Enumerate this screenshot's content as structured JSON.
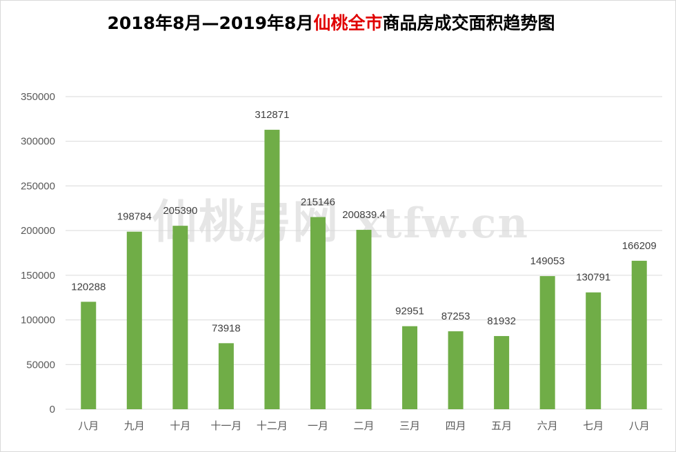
{
  "title": {
    "prefix": "2018年8月—2019年8月",
    "highlight": "仙桃全市",
    "suffix": "商品房成交面积趋势图"
  },
  "watermark": {
    "cn": "仙桃房网",
    "latin": "xtfw.cn"
  },
  "colors": {
    "bar": "#70ad47",
    "grid": "#d9d9d9",
    "title_highlight": "#e00000"
  },
  "chart_data": {
    "type": "bar",
    "categories": [
      "八月",
      "九月",
      "十月",
      "十一月",
      "十二月",
      "一月",
      "二月",
      "三月",
      "四月",
      "五月",
      "六月",
      "七月",
      "八月"
    ],
    "values": [
      120288,
      198784,
      205390,
      73918,
      312871,
      215146,
      200839.4,
      92951,
      87253,
      81932,
      149053,
      130791,
      166209
    ],
    "data_labels": [
      "120288",
      "198784",
      "205390",
      "73918",
      "312871",
      "215146",
      "200839.4",
      "92951",
      "87253",
      "81932",
      "149053",
      "130791",
      "166209"
    ],
    "y_ticks": [
      0,
      50000,
      100000,
      150000,
      200000,
      250000,
      300000,
      350000
    ],
    "ylim": [
      0,
      350000
    ],
    "grid": true,
    "legend": "none",
    "xlabel": "",
    "ylabel": ""
  }
}
